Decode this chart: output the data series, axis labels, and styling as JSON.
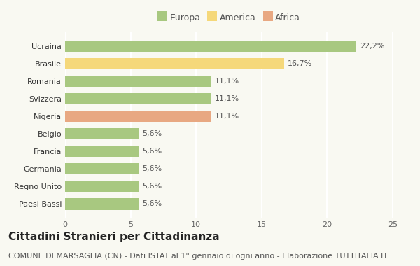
{
  "countries": [
    "Paesi Bassi",
    "Regno Unito",
    "Germania",
    "Francia",
    "Belgio",
    "Nigeria",
    "Svizzera",
    "Romania",
    "Brasile",
    "Ucraina"
  ],
  "values": [
    5.6,
    5.6,
    5.6,
    5.6,
    5.6,
    11.1,
    11.1,
    11.1,
    16.7,
    22.2
  ],
  "labels": [
    "5,6%",
    "5,6%",
    "5,6%",
    "5,6%",
    "5,6%",
    "11,1%",
    "11,1%",
    "11,1%",
    "16,7%",
    "22,2%"
  ],
  "colors": [
    "#a8c880",
    "#a8c880",
    "#a8c880",
    "#a8c880",
    "#a8c880",
    "#e8a882",
    "#a8c880",
    "#a8c880",
    "#f5d87a",
    "#a8c880"
  ],
  "legend": [
    {
      "label": "Europa",
      "color": "#a8c880"
    },
    {
      "label": "America",
      "color": "#f5d87a"
    },
    {
      "label": "Africa",
      "color": "#e8a882"
    }
  ],
  "title": "Cittadini Stranieri per Cittadinanza",
  "subtitle": "COMUNE DI MARSAGLIA (CN) - Dati ISTAT al 1° gennaio di ogni anno - Elaborazione TUTTITALIA.IT",
  "xlim": [
    0,
    25
  ],
  "xticks": [
    0,
    5,
    10,
    15,
    20,
    25
  ],
  "background_color": "#f9f9f2",
  "grid_color": "#ffffff",
  "title_fontsize": 11,
  "subtitle_fontsize": 8,
  "label_fontsize": 8,
  "tick_fontsize": 8
}
